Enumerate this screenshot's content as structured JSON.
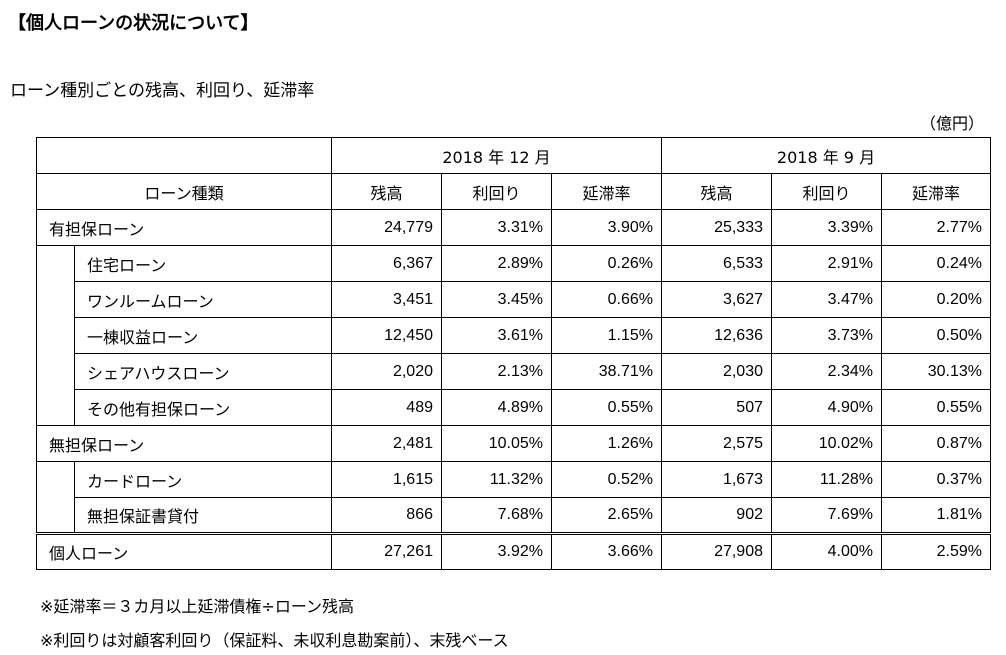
{
  "title": "【個人ローンの状況について】",
  "subtitle": "ローン種別ごとの残高、利回り、延滞率",
  "unit": "（億円）",
  "headers": {
    "period_a": "2018 年 12 月",
    "period_b": "2018 年 9 月",
    "loan_type": "ローン種類",
    "balance": "残高",
    "yield": "利回り",
    "delinquency": "延滞率"
  },
  "rows": [
    {
      "label": "有担保ローン",
      "a_bal": "24,779",
      "a_yld": "3.31%",
      "a_del": "3.90%",
      "b_bal": "25,333",
      "b_yld": "3.39%",
      "b_del": "2.77%"
    },
    {
      "label": "住宅ローン",
      "a_bal": "6,367",
      "a_yld": "2.89%",
      "a_del": "0.26%",
      "b_bal": "6,533",
      "b_yld": "2.91%",
      "b_del": "0.24%"
    },
    {
      "label": "ワンルームローン",
      "a_bal": "3,451",
      "a_yld": "3.45%",
      "a_del": "0.66%",
      "b_bal": "3,627",
      "b_yld": "3.47%",
      "b_del": "0.20%"
    },
    {
      "label": "一棟収益ローン",
      "a_bal": "12,450",
      "a_yld": "3.61%",
      "a_del": "1.15%",
      "b_bal": "12,636",
      "b_yld": "3.73%",
      "b_del": "0.50%"
    },
    {
      "label": "シェアハウスローン",
      "a_bal": "2,020",
      "a_yld": "2.13%",
      "a_del": "38.71%",
      "b_bal": "2,030",
      "b_yld": "2.34%",
      "b_del": "30.13%"
    },
    {
      "label": "その他有担保ローン",
      "a_bal": "489",
      "a_yld": "4.89%",
      "a_del": "0.55%",
      "b_bal": "507",
      "b_yld": "4.90%",
      "b_del": "0.55%"
    },
    {
      "label": "無担保ローン",
      "a_bal": "2,481",
      "a_yld": "10.05%",
      "a_del": "1.26%",
      "b_bal": "2,575",
      "b_yld": "10.02%",
      "b_del": "0.87%"
    },
    {
      "label": "カードローン",
      "a_bal": "1,615",
      "a_yld": "11.32%",
      "a_del": "0.52%",
      "b_bal": "1,673",
      "b_yld": "11.28%",
      "b_del": "0.37%"
    },
    {
      "label": "無担保証書貸付",
      "a_bal": "866",
      "a_yld": "7.68%",
      "a_del": "2.65%",
      "b_bal": "902",
      "b_yld": "7.69%",
      "b_del": "1.81%"
    },
    {
      "label": "個人ローン",
      "a_bal": "27,261",
      "a_yld": "3.92%",
      "a_del": "3.66%",
      "b_bal": "27,908",
      "b_yld": "4.00%",
      "b_del": "2.59%"
    }
  ],
  "notes": [
    "※延滞率＝３カ月以上延滞債権÷ローン残高",
    "※利回りは対顧客利回り（保証料、未収利息勘案前）、末残ベース"
  ]
}
